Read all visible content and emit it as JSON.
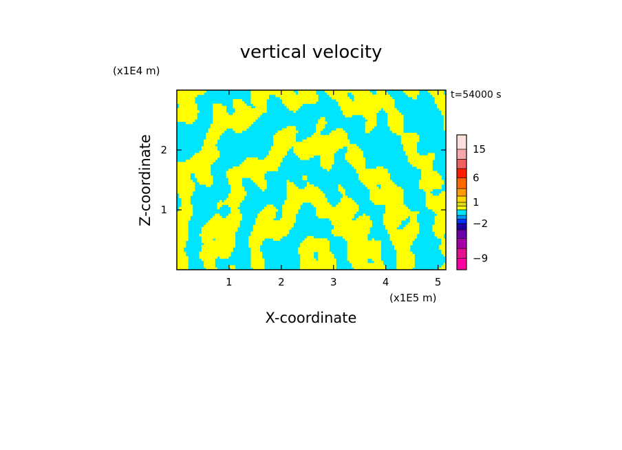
{
  "chart_data": {
    "type": "heatmap",
    "title": "vertical velocity",
    "xlabel": "X-coordinate",
    "ylabel": "Z-coordinate",
    "x_unit": "(x1E5 m)",
    "y_unit": "(x1E4 m)",
    "time_label": "t=54000 s",
    "xlim": [
      0,
      5.15
    ],
    "ylim": [
      0,
      3.0
    ],
    "x_ticks": [
      1,
      2,
      3,
      4,
      5
    ],
    "y_ticks": [
      1,
      2
    ],
    "x_tick_labels": [
      "1",
      "2",
      "3",
      "4",
      "5"
    ],
    "y_tick_labels": [
      "1",
      "2"
    ],
    "grid": false,
    "dominant_levels": [
      {
        "range": [
          -2,
          0
        ],
        "color": "#00e5ff"
      },
      {
        "range": [
          0,
          1
        ],
        "color": "#ffff00"
      }
    ],
    "colorbar": {
      "placement": "right",
      "levels": [
        {
          "lo": -12,
          "hi": -9,
          "color": "#ff00a0"
        },
        {
          "lo": -9,
          "hi": -6,
          "color": "#e2108f"
        },
        {
          "lo": -6,
          "hi": -4,
          "color": "#a500a5"
        },
        {
          "lo": -4,
          "hi": -3,
          "color": "#6a00a8"
        },
        {
          "lo": -3,
          "hi": -2,
          "color": "#1c00a0"
        },
        {
          "lo": -2,
          "hi": -1.5,
          "color": "#0033ff"
        },
        {
          "lo": -1.5,
          "hi": -1,
          "color": "#0099ff"
        },
        {
          "lo": -1,
          "hi": 0,
          "color": "#00e5ff"
        },
        {
          "lo": 0,
          "hi": 0.5,
          "color": "#ffff00"
        },
        {
          "lo": 0.5,
          "hi": 1,
          "color": "#e0e000"
        },
        {
          "lo": 1,
          "hi": 2,
          "color": "#ffd700"
        },
        {
          "lo": 2,
          "hi": 4,
          "color": "#ff9a00"
        },
        {
          "lo": 4,
          "hi": 6,
          "color": "#ff6a00"
        },
        {
          "lo": 6,
          "hi": 9,
          "color": "#ff1c00"
        },
        {
          "lo": 9,
          "hi": 12,
          "color": "#f06060"
        },
        {
          "lo": 12,
          "hi": 15,
          "color": "#f4a8a8"
        },
        {
          "lo": 15,
          "hi": 22,
          "color": "#fbe0dc"
        }
      ],
      "tick_values": [
        15,
        6,
        1,
        -2,
        -9
      ],
      "tick_labels": [
        "15",
        "6",
        "1",
        "−2",
        "−9"
      ]
    }
  }
}
